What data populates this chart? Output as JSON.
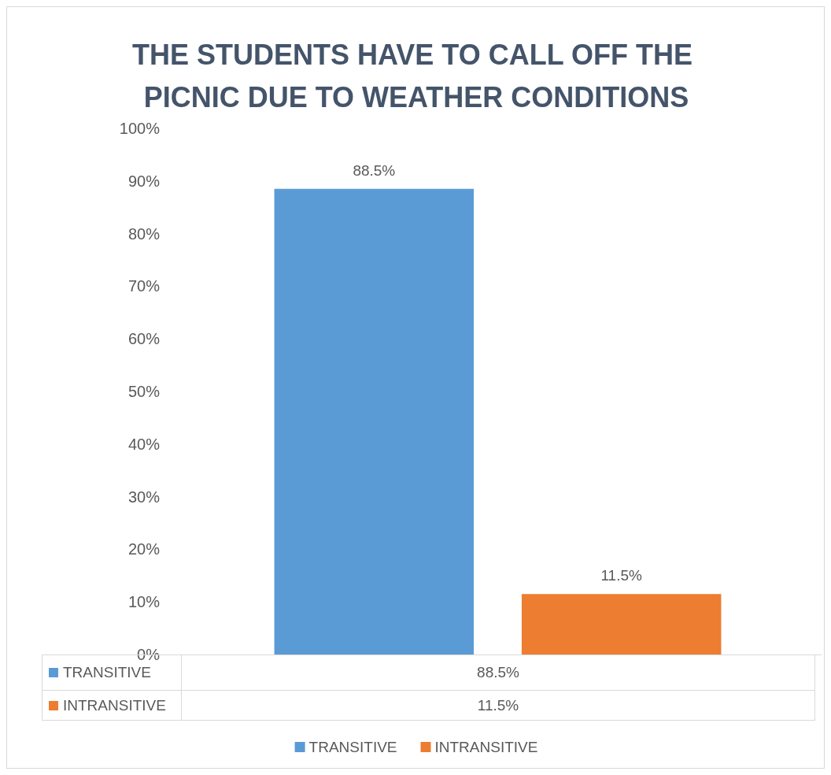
{
  "chart_data": {
    "type": "bar",
    "title": "THE STUDENTS HAVE TO CALL OFF THE PICNIC DUE TO WEATHER CONDITIONS",
    "categories": [
      null
    ],
    "series": [
      {
        "name": "TRANSITIVE",
        "color": "#5b9bd5",
        "values": [
          88.5
        ],
        "value_labels": [
          "88.5%"
        ]
      },
      {
        "name": "INTRANSITIVE",
        "color": "#ed7d31",
        "values": [
          11.5
        ],
        "value_labels": [
          "11.5%"
        ]
      }
    ],
    "ylim": [
      0,
      100
    ],
    "yticks": [
      {
        "value": 0,
        "label": "0%"
      },
      {
        "value": 10,
        "label": "10%"
      },
      {
        "value": 20,
        "label": "20%"
      },
      {
        "value": 30,
        "label": "30%"
      },
      {
        "value": 40,
        "label": "40%"
      },
      {
        "value": 50,
        "label": "50%"
      },
      {
        "value": 60,
        "label": "60%"
      },
      {
        "value": 70,
        "label": "70%"
      },
      {
        "value": 80,
        "label": "80%"
      },
      {
        "value": 90,
        "label": "90%"
      },
      {
        "value": 100,
        "label": "100%"
      }
    ],
    "grid": false,
    "legend": "bottom"
  }
}
